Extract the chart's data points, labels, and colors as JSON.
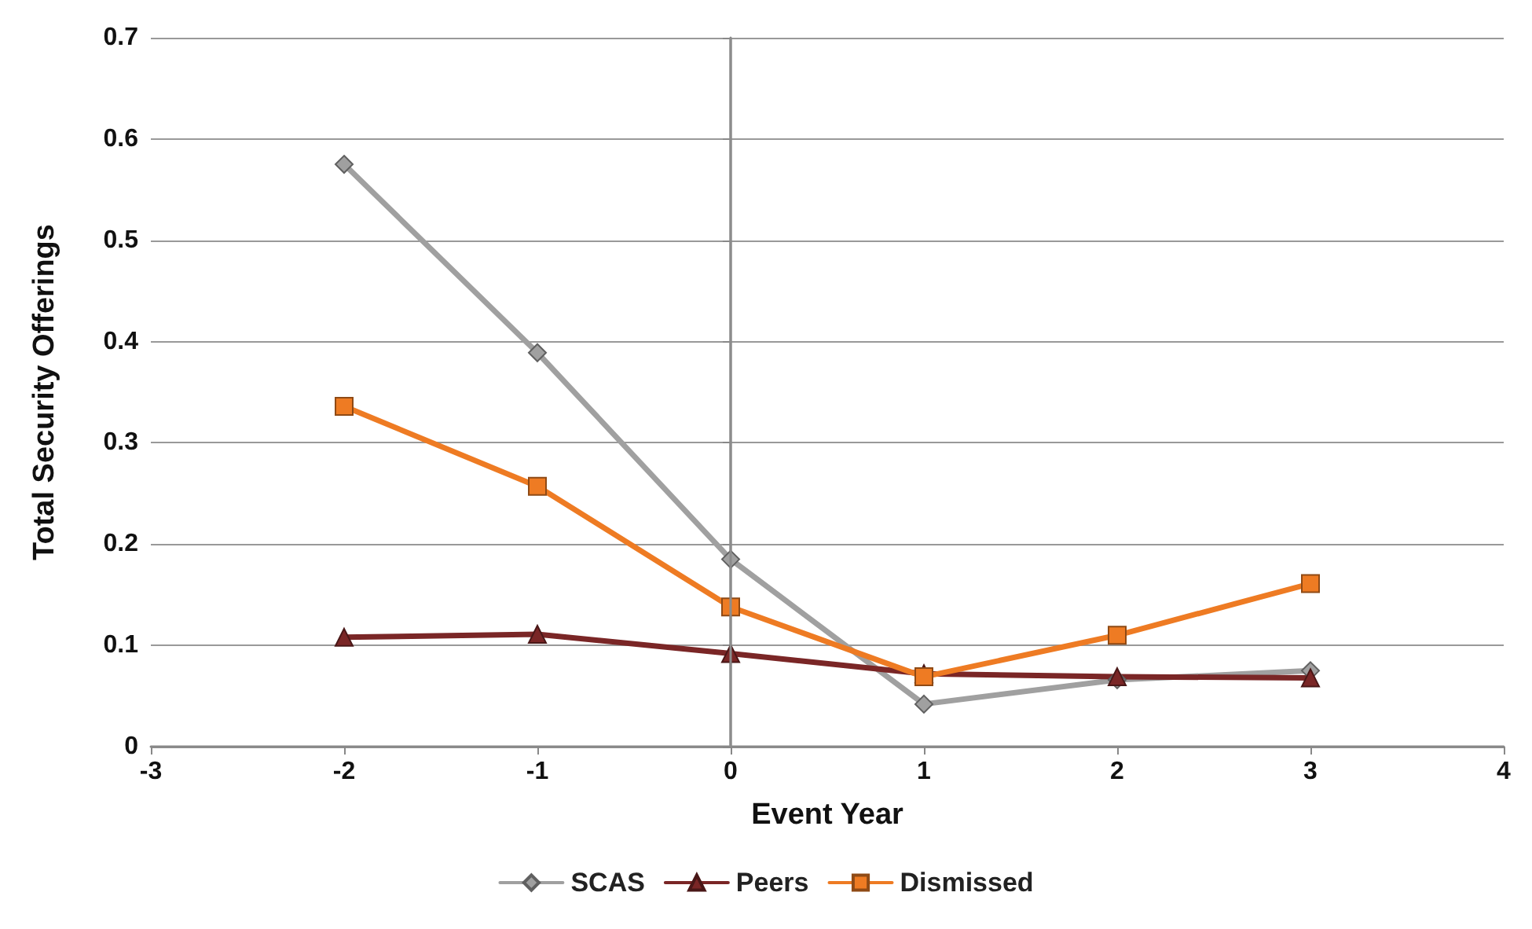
{
  "chart_data": {
    "type": "line",
    "xlabel": "Event Year",
    "ylabel": "Total Security Offerings",
    "x": [
      -2,
      -1,
      0,
      1,
      2,
      3
    ],
    "series": [
      {
        "name": "SCAS",
        "color": "#a0a0a0",
        "marker": "diamond",
        "values": [
          0.575,
          0.389,
          0.185,
          0.042,
          0.066,
          0.075
        ]
      },
      {
        "name": "Peers",
        "color": "#7a2626",
        "marker": "triangle",
        "values": [
          0.108,
          0.111,
          0.092,
          0.072,
          0.069,
          0.068
        ]
      },
      {
        "name": "Dismissed",
        "color": "#ee7b23",
        "marker": "square",
        "values": [
          0.336,
          0.257,
          0.138,
          0.069,
          0.11,
          0.161
        ]
      }
    ],
    "xlim": [
      -3,
      4
    ],
    "xticks": [
      -3,
      -2,
      -1,
      0,
      1,
      2,
      3,
      4
    ],
    "ylim": [
      0,
      0.7
    ],
    "yticks": [
      0,
      0.1,
      0.2,
      0.3,
      0.4,
      0.5,
      0.6,
      0.7
    ],
    "ref_lines": [
      {
        "axis": "x",
        "value": 0,
        "color": "#8c8c8c"
      }
    ],
    "grid": "y",
    "legend": "bottom",
    "line_style": "solid"
  }
}
